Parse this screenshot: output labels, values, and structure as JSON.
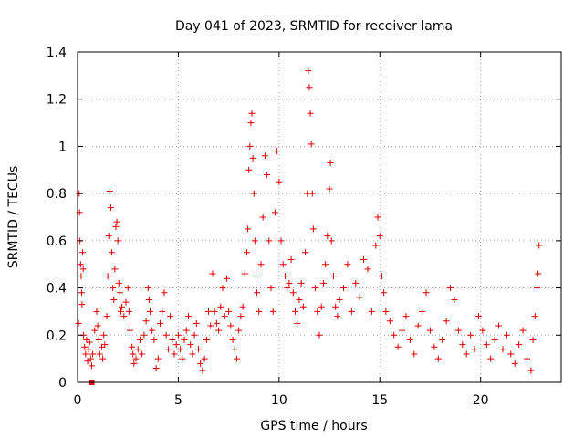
{
  "chart_data": {
    "type": "scatter",
    "title": "Day 041 of 2023, SRMTID for receiver lama",
    "xlabel": "GPS time / hours",
    "ylabel": "SRMTID / TECUs",
    "xlim": [
      0,
      24
    ],
    "ylim": [
      0,
      1.4
    ],
    "xticks": [
      0,
      5,
      10,
      15,
      20
    ],
    "xtick_labels": [
      "0",
      "5",
      "10",
      "15",
      "20"
    ],
    "yticks": [
      0,
      0.2,
      0.4,
      0.6,
      0.8,
      1,
      1.2,
      1.4
    ],
    "ytick_labels": [
      "0",
      "0.2",
      "0.4",
      "0.6",
      "0.8",
      "1",
      "1.2",
      "1.4"
    ],
    "grid": true,
    "marker": "+",
    "series_color": "#e00000",
    "square_markers": [
      {
        "x": 0.7,
        "y": 0
      }
    ],
    "series": [
      {
        "name": "SRMTID",
        "points": [
          [
            0.05,
            0.25
          ],
          [
            0.08,
            0.8
          ],
          [
            0.1,
            0.72
          ],
          [
            0.12,
            0.6
          ],
          [
            0.15,
            0.5
          ],
          [
            0.18,
            0.45
          ],
          [
            0.2,
            0.38
          ],
          [
            0.22,
            0.33
          ],
          [
            0.25,
            0.55
          ],
          [
            0.28,
            0.48
          ],
          [
            0.3,
            0.2
          ],
          [
            0.35,
            0.15
          ],
          [
            0.4,
            0.12
          ],
          [
            0.45,
            0.18
          ],
          [
            0.5,
            0.09
          ],
          [
            0.55,
            0.14
          ],
          [
            0.6,
            0.17
          ],
          [
            0.65,
            0.1
          ],
          [
            0.7,
            0.07
          ],
          [
            0.75,
            0.12
          ],
          [
            0.85,
            0.22
          ],
          [
            0.95,
            0.3
          ],
          [
            1.0,
            0.24
          ],
          [
            1.05,
            0.18
          ],
          [
            1.1,
            0.12
          ],
          [
            1.2,
            0.15
          ],
          [
            1.25,
            0.1
          ],
          [
            1.3,
            0.2
          ],
          [
            1.35,
            0.16
          ],
          [
            1.45,
            0.28
          ],
          [
            1.5,
            0.45
          ],
          [
            1.55,
            0.62
          ],
          [
            1.6,
            0.81
          ],
          [
            1.65,
            0.74
          ],
          [
            1.7,
            0.55
          ],
          [
            1.75,
            0.4
          ],
          [
            1.8,
            0.35
          ],
          [
            1.85,
            0.48
          ],
          [
            1.9,
            0.66
          ],
          [
            1.95,
            0.68
          ],
          [
            2.0,
            0.6
          ],
          [
            2.05,
            0.42
          ],
          [
            2.1,
            0.38
          ],
          [
            2.15,
            0.3
          ],
          [
            2.2,
            0.32
          ],
          [
            2.3,
            0.28
          ],
          [
            2.4,
            0.34
          ],
          [
            2.5,
            0.4
          ],
          [
            2.55,
            0.3
          ],
          [
            2.6,
            0.22
          ],
          [
            2.7,
            0.15
          ],
          [
            2.75,
            0.12
          ],
          [
            2.8,
            0.08
          ],
          [
            2.9,
            0.1
          ],
          [
            3.0,
            0.14
          ],
          [
            3.1,
            0.18
          ],
          [
            3.2,
            0.12
          ],
          [
            3.3,
            0.2
          ],
          [
            3.4,
            0.26
          ],
          [
            3.5,
            0.4
          ],
          [
            3.55,
            0.35
          ],
          [
            3.6,
            0.3
          ],
          [
            3.7,
            0.22
          ],
          [
            3.8,
            0.18
          ],
          [
            3.9,
            0.06
          ],
          [
            4.0,
            0.1
          ],
          [
            4.1,
            0.25
          ],
          [
            4.2,
            0.3
          ],
          [
            4.3,
            0.38
          ],
          [
            4.4,
            0.2
          ],
          [
            4.5,
            0.14
          ],
          [
            4.6,
            0.28
          ],
          [
            4.7,
            0.18
          ],
          [
            4.8,
            0.12
          ],
          [
            4.9,
            0.16
          ],
          [
            5.0,
            0.2
          ],
          [
            5.1,
            0.14
          ],
          [
            5.2,
            0.1
          ],
          [
            5.3,
            0.18
          ],
          [
            5.4,
            0.22
          ],
          [
            5.5,
            0.28
          ],
          [
            5.6,
            0.16
          ],
          [
            5.7,
            0.12
          ],
          [
            5.8,
            0.2
          ],
          [
            5.9,
            0.25
          ],
          [
            6.0,
            0.14
          ],
          [
            6.1,
            0.08
          ],
          [
            6.2,
            0.05
          ],
          [
            6.3,
            0.1
          ],
          [
            6.4,
            0.18
          ],
          [
            6.5,
            0.3
          ],
          [
            6.6,
            0.24
          ],
          [
            6.7,
            0.46
          ],
          [
            6.8,
            0.3
          ],
          [
            6.9,
            0.25
          ],
          [
            7.0,
            0.22
          ],
          [
            7.1,
            0.32
          ],
          [
            7.2,
            0.4
          ],
          [
            7.3,
            0.28
          ],
          [
            7.4,
            0.44
          ],
          [
            7.5,
            0.3
          ],
          [
            7.6,
            0.24
          ],
          [
            7.7,
            0.18
          ],
          [
            7.8,
            0.14
          ],
          [
            7.9,
            0.1
          ],
          [
            8.0,
            0.22
          ],
          [
            8.1,
            0.28
          ],
          [
            8.2,
            0.32
          ],
          [
            8.3,
            0.46
          ],
          [
            8.4,
            0.55
          ],
          [
            8.45,
            0.65
          ],
          [
            8.5,
            0.9
          ],
          [
            8.55,
            1.0
          ],
          [
            8.6,
            1.1
          ],
          [
            8.65,
            1.14
          ],
          [
            8.7,
            0.95
          ],
          [
            8.75,
            0.8
          ],
          [
            8.8,
            0.6
          ],
          [
            8.85,
            0.45
          ],
          [
            8.9,
            0.38
          ],
          [
            9.0,
            0.3
          ],
          [
            9.1,
            0.5
          ],
          [
            9.2,
            0.7
          ],
          [
            9.3,
            0.96
          ],
          [
            9.4,
            0.88
          ],
          [
            9.5,
            0.6
          ],
          [
            9.6,
            0.4
          ],
          [
            9.7,
            0.3
          ],
          [
            9.8,
            0.72
          ],
          [
            9.9,
            0.98
          ],
          [
            10.0,
            0.85
          ],
          [
            10.1,
            0.6
          ],
          [
            10.2,
            0.5
          ],
          [
            10.3,
            0.45
          ],
          [
            10.4,
            0.4
          ],
          [
            10.5,
            0.42
          ],
          [
            10.6,
            0.52
          ],
          [
            10.7,
            0.38
          ],
          [
            10.8,
            0.3
          ],
          [
            10.9,
            0.25
          ],
          [
            11.0,
            0.35
          ],
          [
            11.1,
            0.42
          ],
          [
            11.2,
            0.32
          ],
          [
            11.3,
            0.55
          ],
          [
            11.4,
            0.8
          ],
          [
            11.45,
            1.32
          ],
          [
            11.5,
            1.25
          ],
          [
            11.55,
            1.14
          ],
          [
            11.6,
            1.01
          ],
          [
            11.65,
            0.8
          ],
          [
            11.7,
            0.65
          ],
          [
            11.8,
            0.4
          ],
          [
            11.9,
            0.3
          ],
          [
            12.0,
            0.2
          ],
          [
            12.1,
            0.32
          ],
          [
            12.2,
            0.42
          ],
          [
            12.3,
            0.5
          ],
          [
            12.4,
            0.62
          ],
          [
            12.5,
            0.82
          ],
          [
            12.55,
            0.93
          ],
          [
            12.6,
            0.6
          ],
          [
            12.7,
            0.45
          ],
          [
            12.8,
            0.32
          ],
          [
            12.9,
            0.28
          ],
          [
            13.0,
            0.35
          ],
          [
            13.2,
            0.4
          ],
          [
            13.4,
            0.5
          ],
          [
            13.6,
            0.3
          ],
          [
            13.8,
            0.42
          ],
          [
            14.0,
            0.36
          ],
          [
            14.2,
            0.52
          ],
          [
            14.4,
            0.48
          ],
          [
            14.6,
            0.3
          ],
          [
            14.8,
            0.58
          ],
          [
            14.9,
            0.7
          ],
          [
            15.0,
            0.62
          ],
          [
            15.1,
            0.45
          ],
          [
            15.2,
            0.38
          ],
          [
            15.3,
            0.3
          ],
          [
            15.5,
            0.26
          ],
          [
            15.7,
            0.2
          ],
          [
            15.9,
            0.15
          ],
          [
            16.1,
            0.22
          ],
          [
            16.3,
            0.28
          ],
          [
            16.5,
            0.18
          ],
          [
            16.7,
            0.12
          ],
          [
            16.9,
            0.24
          ],
          [
            17.1,
            0.3
          ],
          [
            17.3,
            0.38
          ],
          [
            17.5,
            0.22
          ],
          [
            17.7,
            0.15
          ],
          [
            17.9,
            0.1
          ],
          [
            18.1,
            0.18
          ],
          [
            18.3,
            0.26
          ],
          [
            18.5,
            0.4
          ],
          [
            18.7,
            0.35
          ],
          [
            18.9,
            0.22
          ],
          [
            19.1,
            0.16
          ],
          [
            19.3,
            0.12
          ],
          [
            19.5,
            0.2
          ],
          [
            19.7,
            0.14
          ],
          [
            19.9,
            0.28
          ],
          [
            20.1,
            0.22
          ],
          [
            20.3,
            0.16
          ],
          [
            20.5,
            0.1
          ],
          [
            20.7,
            0.18
          ],
          [
            20.9,
            0.24
          ],
          [
            21.1,
            0.14
          ],
          [
            21.3,
            0.2
          ],
          [
            21.5,
            0.12
          ],
          [
            21.7,
            0.08
          ],
          [
            21.9,
            0.16
          ],
          [
            22.1,
            0.22
          ],
          [
            22.3,
            0.1
          ],
          [
            22.5,
            0.05
          ],
          [
            22.6,
            0.18
          ],
          [
            22.7,
            0.28
          ],
          [
            22.8,
            0.4
          ],
          [
            22.85,
            0.46
          ],
          [
            22.9,
            0.58
          ]
        ]
      }
    ]
  }
}
